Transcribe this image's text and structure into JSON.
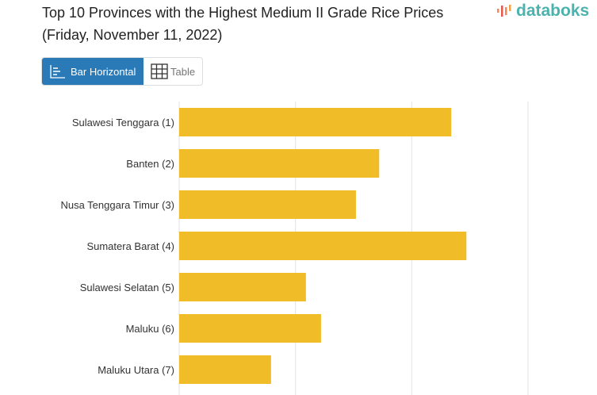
{
  "title": "Top 10 Provinces with the Highest Medium II Grade Rice Prices (Friday, November 11, 2022)",
  "logo": "databoks",
  "toggle": {
    "bar_label": "Bar Horizontal",
    "table_label": "Table",
    "active": "Bar Horizontal"
  },
  "colors": {
    "bar": "#f0bc28",
    "active_button": "#2a7ab8",
    "logo": "#4bb3ad"
  },
  "chart_data": {
    "type": "bar",
    "orientation": "horizontal",
    "categories": [
      "Sulawesi Tenggara (1)",
      "Banten (2)",
      "Nusa Tenggara Timur (3)",
      "Sumatera Barat (4)",
      "Sulawesi Selatan (5)",
      "Maluku (6)",
      "Maluku Utara (7)"
    ],
    "values": [
      11700,
      8600,
      7600,
      12350,
      5450,
      6100,
      3950
    ],
    "xlim": [
      0,
      15000
    ],
    "grid": true,
    "legend": "none"
  }
}
